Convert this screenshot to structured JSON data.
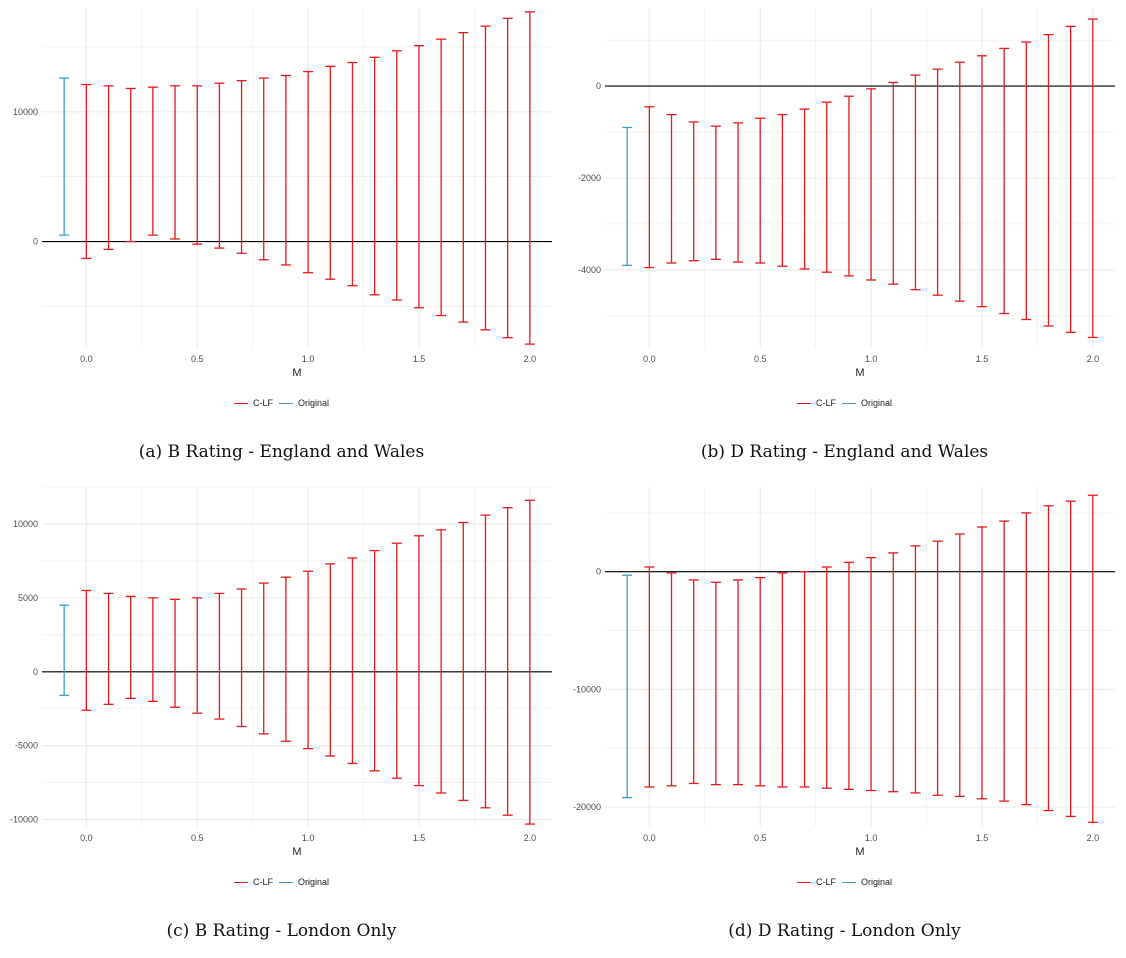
{
  "colors": {
    "clf": "#e41a1c",
    "original": "#3a9fd2",
    "zero_line": "#000000",
    "grid": "#ebebeb"
  },
  "legend": {
    "clf_label": "C-LF",
    "original_label": "Original"
  },
  "chart_data": [
    {
      "type": "errorbar",
      "caption": "(a) B Rating - England and Wales",
      "xlabel": "M",
      "ylabel": "",
      "xlim": [
        -0.2,
        2.1
      ],
      "ylim": [
        -8200,
        18000
      ],
      "x_ticks": [
        0,
        0.5,
        1,
        1.5,
        2
      ],
      "x_tick_labels": [
        "0.0",
        "0.5",
        "1.0",
        "1.5",
        "2.0"
      ],
      "y_ticks": [
        0,
        10000
      ],
      "y_tick_labels": [
        "0",
        "10000"
      ],
      "grid": true,
      "original": {
        "x": -0.1,
        "low": 500,
        "high": 12600
      },
      "clf": {
        "x": [
          0,
          0.1,
          0.2,
          0.3,
          0.4,
          0.5,
          0.6,
          0.7,
          0.8,
          0.9,
          1.0,
          1.1,
          1.2,
          1.3,
          1.4,
          1.5,
          1.6,
          1.7,
          1.8,
          1.9,
          2.0
        ],
        "low": [
          -1300,
          -600,
          0,
          500,
          200,
          -200,
          -500,
          -900,
          -1400,
          -1800,
          -2400,
          -2900,
          -3400,
          -4100,
          -4500,
          -5100,
          -5700,
          -6200,
          -6800,
          -7400,
          -7900
        ],
        "high": [
          12100,
          12000,
          11800,
          11900,
          12000,
          12000,
          12200,
          12400,
          12600,
          12800,
          13100,
          13500,
          13800,
          14200,
          14700,
          15100,
          15600,
          16100,
          16600,
          17200,
          17700
        ]
      }
    },
    {
      "type": "errorbar",
      "caption": "(b) D Rating - England and Wales",
      "xlabel": "M",
      "ylabel": "",
      "xlim": [
        -0.2,
        2.1
      ],
      "ylim": [
        -5700,
        1700
      ],
      "x_ticks": [
        0,
        0.5,
        1,
        1.5,
        2
      ],
      "x_tick_labels": [
        "0.0",
        "0.5",
        "1.0",
        "1.5",
        "2.0"
      ],
      "y_ticks": [
        -4000,
        -2000,
        0
      ],
      "y_tick_labels": [
        "-4000",
        "-2000",
        "0"
      ],
      "grid": true,
      "original": {
        "x": -0.1,
        "low": -3900,
        "high": -900
      },
      "clf": {
        "x": [
          0,
          0.1,
          0.2,
          0.3,
          0.4,
          0.5,
          0.6,
          0.7,
          0.8,
          0.9,
          1.0,
          1.1,
          1.2,
          1.3,
          1.4,
          1.5,
          1.6,
          1.7,
          1.8,
          1.9,
          2.0
        ],
        "low": [
          -3950,
          -3850,
          -3800,
          -3770,
          -3830,
          -3850,
          -3920,
          -3980,
          -4050,
          -4130,
          -4220,
          -4310,
          -4430,
          -4550,
          -4680,
          -4800,
          -4950,
          -5080,
          -5220,
          -5360,
          -5470
        ],
        "high": [
          -450,
          -620,
          -780,
          -870,
          -800,
          -700,
          -620,
          -500,
          -350,
          -220,
          -60,
          80,
          240,
          370,
          520,
          660,
          820,
          960,
          1120,
          1300,
          1460
        ]
      }
    },
    {
      "type": "errorbar",
      "caption": "(c) B Rating - London Only",
      "xlabel": "M",
      "ylabel": "",
      "xlim": [
        -0.2,
        2.1
      ],
      "ylim": [
        -10500,
        12500
      ],
      "x_ticks": [
        0,
        0.5,
        1,
        1.5,
        2
      ],
      "x_tick_labels": [
        "0.0",
        "0.5",
        "1.0",
        "1.5",
        "2.0"
      ],
      "y_ticks": [
        -10000,
        -5000,
        0,
        5000,
        10000
      ],
      "y_tick_labels": [
        "-10000",
        "-5000",
        "0",
        "5000",
        "10000"
      ],
      "grid": true,
      "original": {
        "x": -0.1,
        "low": -1600,
        "high": 4500
      },
      "clf": {
        "x": [
          0,
          0.1,
          0.2,
          0.3,
          0.4,
          0.5,
          0.6,
          0.7,
          0.8,
          0.9,
          1.0,
          1.1,
          1.2,
          1.3,
          1.4,
          1.5,
          1.6,
          1.7,
          1.8,
          1.9,
          2.0
        ],
        "low": [
          -2600,
          -2200,
          -1800,
          -2000,
          -2400,
          -2800,
          -3200,
          -3700,
          -4200,
          -4700,
          -5200,
          -5700,
          -6200,
          -6700,
          -7200,
          -7700,
          -8200,
          -8700,
          -9200,
          -9700,
          -10300
        ],
        "high": [
          5500,
          5300,
          5100,
          5000,
          4900,
          5000,
          5300,
          5600,
          6000,
          6400,
          6800,
          7300,
          7700,
          8200,
          8700,
          9200,
          9600,
          10100,
          10600,
          11100,
          11600
        ]
      }
    },
    {
      "type": "errorbar",
      "caption": "(d) D Rating - London Only",
      "xlabel": "M",
      "ylabel": "",
      "xlim": [
        -0.2,
        2.1
      ],
      "ylim": [
        -21700,
        7200
      ],
      "x_ticks": [
        0,
        0.5,
        1,
        1.5,
        2
      ],
      "x_tick_labels": [
        "0.0",
        "0.5",
        "1.0",
        "1.5",
        "2.0"
      ],
      "y_ticks": [
        -20000,
        -10000,
        0
      ],
      "y_tick_labels": [
        "-20000",
        "-10000",
        "0"
      ],
      "grid": true,
      "original": {
        "x": -0.1,
        "low": -19200,
        "high": -300
      },
      "clf": {
        "x": [
          0,
          0.1,
          0.2,
          0.3,
          0.4,
          0.5,
          0.6,
          0.7,
          0.8,
          0.9,
          1.0,
          1.1,
          1.2,
          1.3,
          1.4,
          1.5,
          1.6,
          1.7,
          1.8,
          1.9,
          2.0
        ],
        "low": [
          -18300,
          -18200,
          -18000,
          -18100,
          -18100,
          -18200,
          -18300,
          -18300,
          -18400,
          -18500,
          -18600,
          -18700,
          -18800,
          -19000,
          -19100,
          -19300,
          -19500,
          -19800,
          -20300,
          -20800,
          -21300
        ],
        "high": [
          400,
          -100,
          -700,
          -900,
          -700,
          -500,
          -100,
          0,
          400,
          800,
          1200,
          1600,
          2200,
          2600,
          3200,
          3800,
          4300,
          5000,
          5600,
          6000,
          6500
        ]
      }
    }
  ]
}
